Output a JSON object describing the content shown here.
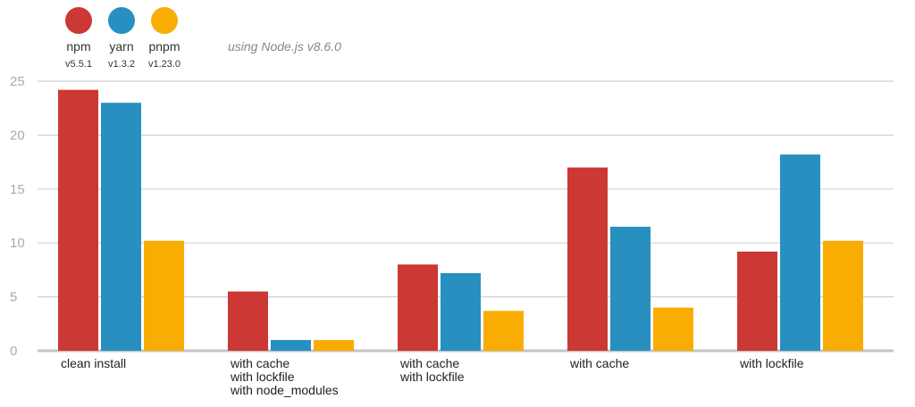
{
  "legend": [
    {
      "name": "npm",
      "version": "v5.5.1",
      "color": "#cc3834"
    },
    {
      "name": "yarn",
      "version": "v1.3.2",
      "color": "#2790c0"
    },
    {
      "name": "pnpm",
      "version": "v1.23.0",
      "color": "#f9ad02"
    }
  ],
  "note": "using Node.js v8.6.0",
  "chart_data": {
    "type": "bar",
    "categories": [
      [
        "clean install"
      ],
      [
        "with cache",
        "with lockfile",
        "with node_modules"
      ],
      [
        "with cache",
        "with lockfile"
      ],
      [
        "with cache"
      ],
      [
        "with lockfile"
      ]
    ],
    "series": [
      {
        "name": "npm",
        "values": [
          24.2,
          5.5,
          8.0,
          17.0,
          9.2
        ]
      },
      {
        "name": "yarn",
        "values": [
          23.0,
          1.0,
          7.2,
          11.5,
          18.2
        ]
      },
      {
        "name": "pnpm",
        "values": [
          10.2,
          1.0,
          3.7,
          4.0,
          10.2
        ]
      }
    ],
    "ylim": [
      0,
      25
    ],
    "yticks": [
      0,
      5,
      10,
      15,
      20,
      25
    ],
    "grid": true,
    "legend_position": "top-left"
  }
}
